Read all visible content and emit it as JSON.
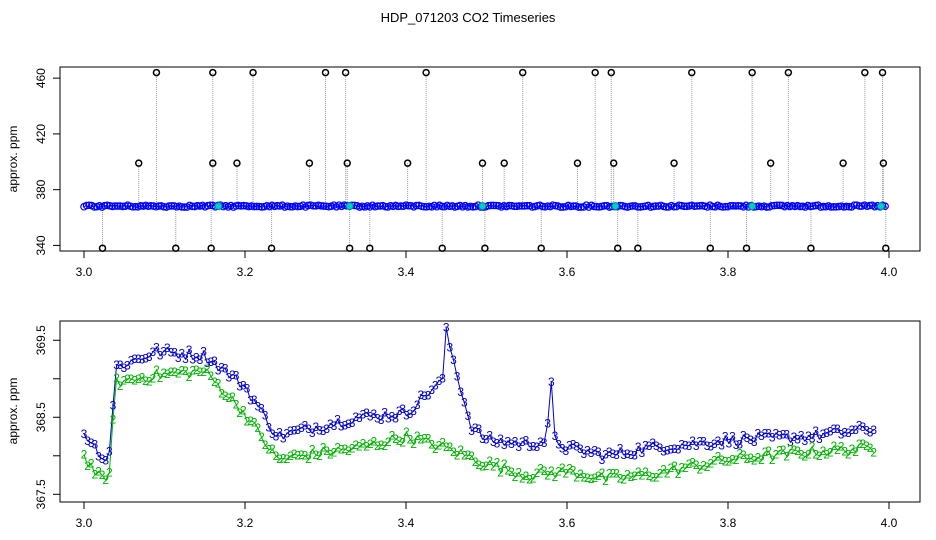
{
  "chart_data": [
    {
      "type": "line",
      "title": "HDP_071203  CO2 Timeseries",
      "ylabel": "approx. ppm",
      "xlim": [
        3.0,
        4.0
      ],
      "ylim": [
        336,
        468
      ],
      "xticks": [
        "3.0",
        "3.2",
        "3.4",
        "3.6",
        "3.8",
        "4.0"
      ],
      "yticks": [
        "340",
        "380",
        "420",
        "460"
      ],
      "grid": false,
      "colors": {
        "line": "#0000ff",
        "trace": "#999999",
        "outlier": "#000000",
        "highlight": "#00cccc"
      },
      "baseline": 368.2,
      "outliers_high": [
        3.09,
        3.16,
        3.21,
        3.3,
        3.325,
        3.425,
        3.545,
        3.635,
        3.655,
        3.755,
        3.83,
        3.875,
        3.97,
        3.992
      ],
      "outliers_mid": [
        3.068,
        3.16,
        3.19,
        3.28,
        3.327,
        3.402,
        3.495,
        3.522,
        3.613,
        3.658,
        3.733,
        3.853,
        3.943,
        3.993
      ],
      "outliers_low": [
        3.023,
        3.114,
        3.158,
        3.233,
        3.33,
        3.355,
        3.445,
        3.498,
        3.568,
        3.663,
        3.688,
        3.778,
        3.823,
        3.903,
        3.996
      ],
      "highlights": [
        3.167,
        3.33,
        3.495,
        3.66,
        3.83,
        3.99
      ]
    },
    {
      "type": "line",
      "ylabel": "approx. ppm",
      "xlim": [
        3.0,
        4.0
      ],
      "ylim": [
        367.4,
        369.75
      ],
      "xticks": [
        "3.0",
        "3.2",
        "3.4",
        "3.6",
        "3.8",
        "4.0"
      ],
      "yticks": [
        "367.5",
        "368.5",
        "369.5"
      ],
      "grid": false,
      "series": [
        {
          "label": "3",
          "color": "#0000cc",
          "x": [
            3.0,
            3.03,
            3.04,
            3.09,
            3.15,
            3.2,
            3.24,
            3.3,
            3.34,
            3.4,
            3.43,
            3.445,
            3.45,
            3.48,
            3.5,
            3.55,
            3.575,
            3.58,
            3.585,
            3.6,
            3.65,
            3.7,
            3.8,
            3.9,
            3.98
          ],
          "y": [
            368.3,
            367.9,
            369.15,
            369.35,
            369.3,
            368.9,
            368.25,
            368.4,
            368.5,
            368.55,
            368.85,
            368.95,
            369.6,
            368.4,
            368.2,
            368.15,
            368.2,
            369.0,
            368.2,
            368.1,
            368.0,
            368.1,
            368.2,
            368.25,
            368.35
          ]
        },
        {
          "label": "2",
          "color": "#00b300",
          "x": [
            3.0,
            3.02,
            3.03,
            3.04,
            3.09,
            3.15,
            3.2,
            3.24,
            3.3,
            3.34,
            3.4,
            3.45,
            3.5,
            3.55,
            3.6,
            3.65,
            3.7,
            3.8,
            3.9,
            3.98
          ],
          "y": [
            368.0,
            367.7,
            367.65,
            368.95,
            369.05,
            369.1,
            368.55,
            367.95,
            368.05,
            368.1,
            368.25,
            368.1,
            367.9,
            367.75,
            367.8,
            367.7,
            367.75,
            367.95,
            368.05,
            368.1
          ]
        }
      ]
    }
  ]
}
